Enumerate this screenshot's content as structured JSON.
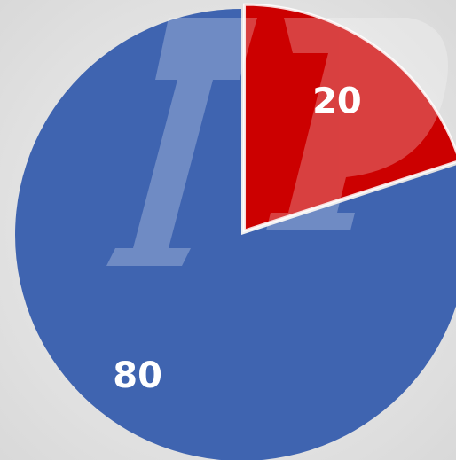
{
  "chart_data": {
    "type": "pie",
    "values": [
      20,
      80
    ],
    "colors": [
      "#cc0000",
      "#3f64b0"
    ]
  }
}
